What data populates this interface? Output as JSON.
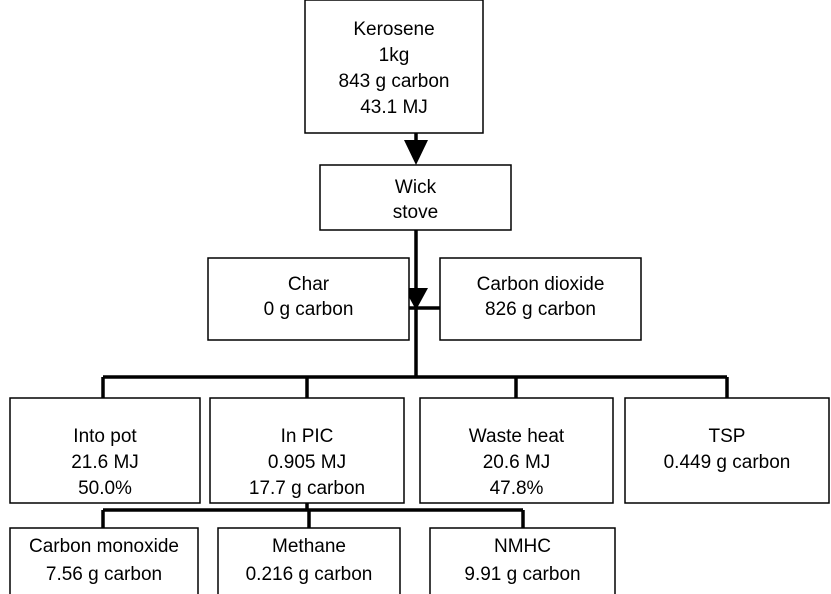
{
  "nodes": [
    {
      "lines": [
        "Kerosene",
        "1kg",
        "843 g carbon",
        "43.1  MJ"
      ]
    },
    {
      "lines": [
        "Wick",
        "stove"
      ]
    },
    {
      "lines": [
        "Char",
        "0 g carbon"
      ]
    },
    {
      "lines": [
        "Carbon dioxide",
        "826 g carbon"
      ]
    },
    {
      "lines": [
        "Into pot",
        "21.6 MJ",
        "50.0%"
      ]
    },
    {
      "lines": [
        "In PIC",
        "0.905 MJ",
        "17.7 g carbon"
      ]
    },
    {
      "lines": [
        "Waste heat",
        "20.6 MJ",
        "47.8%"
      ]
    },
    {
      "lines": [
        "TSP",
        "0.449 g carbon"
      ]
    },
    {
      "lines": [
        "Carbon monoxide",
        "7.56 g carbon"
      ]
    },
    {
      "lines": [
        "Methane",
        "0.216 g carbon"
      ]
    },
    {
      "lines": [
        "NMHC",
        "9.91 g carbon"
      ]
    }
  ]
}
